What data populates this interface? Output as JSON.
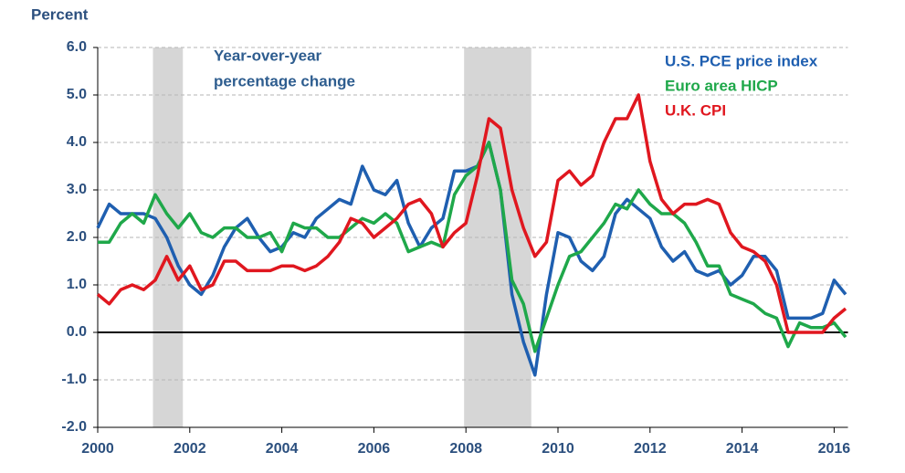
{
  "chart_data": {
    "type": "line",
    "y_label": "Percent",
    "annotation": [
      "Year-over-year",
      "percentage change"
    ],
    "xlim": [
      2000,
      2016.3
    ],
    "xticks": [
      2000,
      2002,
      2004,
      2006,
      2008,
      2010,
      2012,
      2014,
      2016
    ],
    "ylim": [
      -2,
      6
    ],
    "yticks": [
      {
        "value": -2,
        "label": "-2.0"
      },
      {
        "value": -1,
        "label": "-1.0"
      },
      {
        "value": 0,
        "label": "0.0"
      },
      {
        "value": 1,
        "label": "1.0"
      },
      {
        "value": 2,
        "label": "2.0"
      },
      {
        "value": 3,
        "label": "3.0"
      },
      {
        "value": 4,
        "label": "4.0"
      },
      {
        "value": 5,
        "label": "5.0"
      },
      {
        "value": 6,
        "label": "6.0"
      }
    ],
    "grid": true,
    "zero_line": true,
    "legend": "top-right",
    "shaded_periods": [
      [
        2001.2,
        2001.85
      ],
      [
        2007.96,
        2009.42
      ]
    ],
    "x": [
      2000,
      2000.25,
      2000.5,
      2000.75,
      2001,
      2001.25,
      2001.5,
      2001.75,
      2002,
      2002.25,
      2002.5,
      2002.75,
      2003,
      2003.25,
      2003.5,
      2003.75,
      2004,
      2004.25,
      2004.5,
      2004.75,
      2005,
      2005.25,
      2005.5,
      2005.75,
      2006,
      2006.25,
      2006.5,
      2006.75,
      2007,
      2007.25,
      2007.5,
      2007.75,
      2008,
      2008.25,
      2008.5,
      2008.75,
      2009,
      2009.25,
      2009.5,
      2009.75,
      2010,
      2010.25,
      2010.5,
      2010.75,
      2011,
      2011.25,
      2011.5,
      2011.75,
      2012,
      2012.25,
      2012.5,
      2012.75,
      2013,
      2013.25,
      2013.5,
      2013.75,
      2014,
      2014.25,
      2014.5,
      2014.75,
      2015,
      2015.25,
      2015.5,
      2015.75,
      2016,
      2016.25
    ],
    "series": [
      {
        "name": "U.S. PCE price index",
        "color": "#1f5fb0",
        "values": [
          2.2,
          2.7,
          2.5,
          2.5,
          2.5,
          2.4,
          2.0,
          1.4,
          1.0,
          0.8,
          1.2,
          1.8,
          2.2,
          2.4,
          2.0,
          1.7,
          1.8,
          2.1,
          2.0,
          2.4,
          2.6,
          2.8,
          2.7,
          3.5,
          3.0,
          2.9,
          3.2,
          2.3,
          1.8,
          2.2,
          2.4,
          3.4,
          3.4,
          3.5,
          4.0,
          3.0,
          0.8,
          -0.2,
          -0.9,
          0.8,
          2.1,
          2.0,
          1.5,
          1.3,
          1.6,
          2.5,
          2.8,
          2.6,
          2.4,
          1.8,
          1.5,
          1.7,
          1.3,
          1.2,
          1.3,
          1.0,
          1.2,
          1.6,
          1.6,
          1.3,
          0.3,
          0.3,
          0.3,
          0.4,
          1.1,
          0.8
        ]
      },
      {
        "name": "Euro area HICP",
        "color": "#1fa84a",
        "values": [
          1.9,
          1.9,
          2.3,
          2.5,
          2.3,
          2.9,
          2.5,
          2.2,
          2.5,
          2.1,
          2.0,
          2.2,
          2.2,
          2.0,
          2.0,
          2.1,
          1.7,
          2.3,
          2.2,
          2.2,
          2.0,
          2.0,
          2.2,
          2.4,
          2.3,
          2.5,
          2.3,
          1.7,
          1.8,
          1.9,
          1.8,
          2.9,
          3.3,
          3.5,
          4.0,
          3.0,
          1.1,
          0.6,
          -0.4,
          0.3,
          1.0,
          1.6,
          1.7,
          2.0,
          2.3,
          2.7,
          2.6,
          3.0,
          2.7,
          2.5,
          2.5,
          2.3,
          1.9,
          1.4,
          1.4,
          0.8,
          0.7,
          0.6,
          0.4,
          0.3,
          -0.3,
          0.2,
          0.1,
          0.1,
          0.2,
          -0.1
        ]
      },
      {
        "name": "U.K. CPI",
        "color": "#e0171f",
        "values": [
          0.8,
          0.6,
          0.9,
          1.0,
          0.9,
          1.1,
          1.6,
          1.1,
          1.4,
          0.9,
          1.0,
          1.5,
          1.5,
          1.3,
          1.3,
          1.3,
          1.4,
          1.4,
          1.3,
          1.4,
          1.6,
          1.9,
          2.4,
          2.3,
          2.0,
          2.2,
          2.4,
          2.7,
          2.8,
          2.5,
          1.8,
          2.1,
          2.3,
          3.3,
          4.5,
          4.3,
          3.0,
          2.2,
          1.6,
          1.9,
          3.2,
          3.4,
          3.1,
          3.3,
          4.0,
          4.5,
          4.5,
          5.0,
          3.6,
          2.8,
          2.5,
          2.7,
          2.7,
          2.8,
          2.7,
          2.1,
          1.8,
          1.7,
          1.5,
          1.0,
          0.0,
          0.0,
          0.0,
          0.0,
          0.3,
          0.5
        ]
      }
    ]
  }
}
